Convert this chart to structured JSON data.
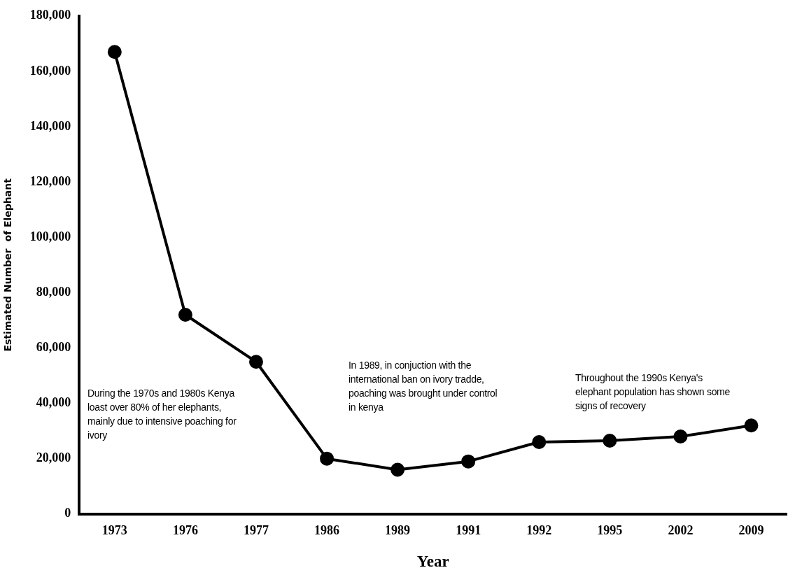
{
  "chart_data": {
    "type": "line",
    "xlabel": "Year",
    "ylabel": "Estimated Number  of Elephant",
    "categories": [
      "1973",
      "1976",
      "1977",
      "1986",
      "1989",
      "1991",
      "1992",
      "1995",
      "2002",
      "2009"
    ],
    "series": [
      {
        "color": "#000000",
        "values": [
          167000,
          72000,
          55000,
          20000,
          16000,
          19000,
          26000,
          26500,
          28000,
          32000
        ]
      }
    ],
    "ylim": [
      0,
      180000
    ],
    "yticks": [
      0,
      {
        "value": 20000,
        "label": "20,000"
      },
      {
        "value": 40000,
        "label": "40,000"
      },
      {
        "value": 60000,
        "label": "60,000"
      },
      {
        "value": 80000,
        "label": "80,000"
      },
      {
        "value": 100000,
        "label": "100,000"
      },
      {
        "value": 120000,
        "label": "120,000"
      },
      {
        "value": 140000,
        "label": "140,000"
      },
      {
        "value": 160000,
        "label": "160,000"
      },
      {
        "value": 180000,
        "label": "180,000"
      }
    ],
    "annotations": [
      "During the 1970s and 1980s Kenya loast over 80% of her elephants, mainly due to intensive poaching for ivory",
      "In 1989, in conjuction with the international ban on ivory tradde, poaching was brought under control in kenya",
      "Throughout the 1990s Kenya's elephant population has shown some signs of recovery"
    ],
    "grid": false,
    "legend": false,
    "marker": "circle",
    "line_style": "solid"
  }
}
